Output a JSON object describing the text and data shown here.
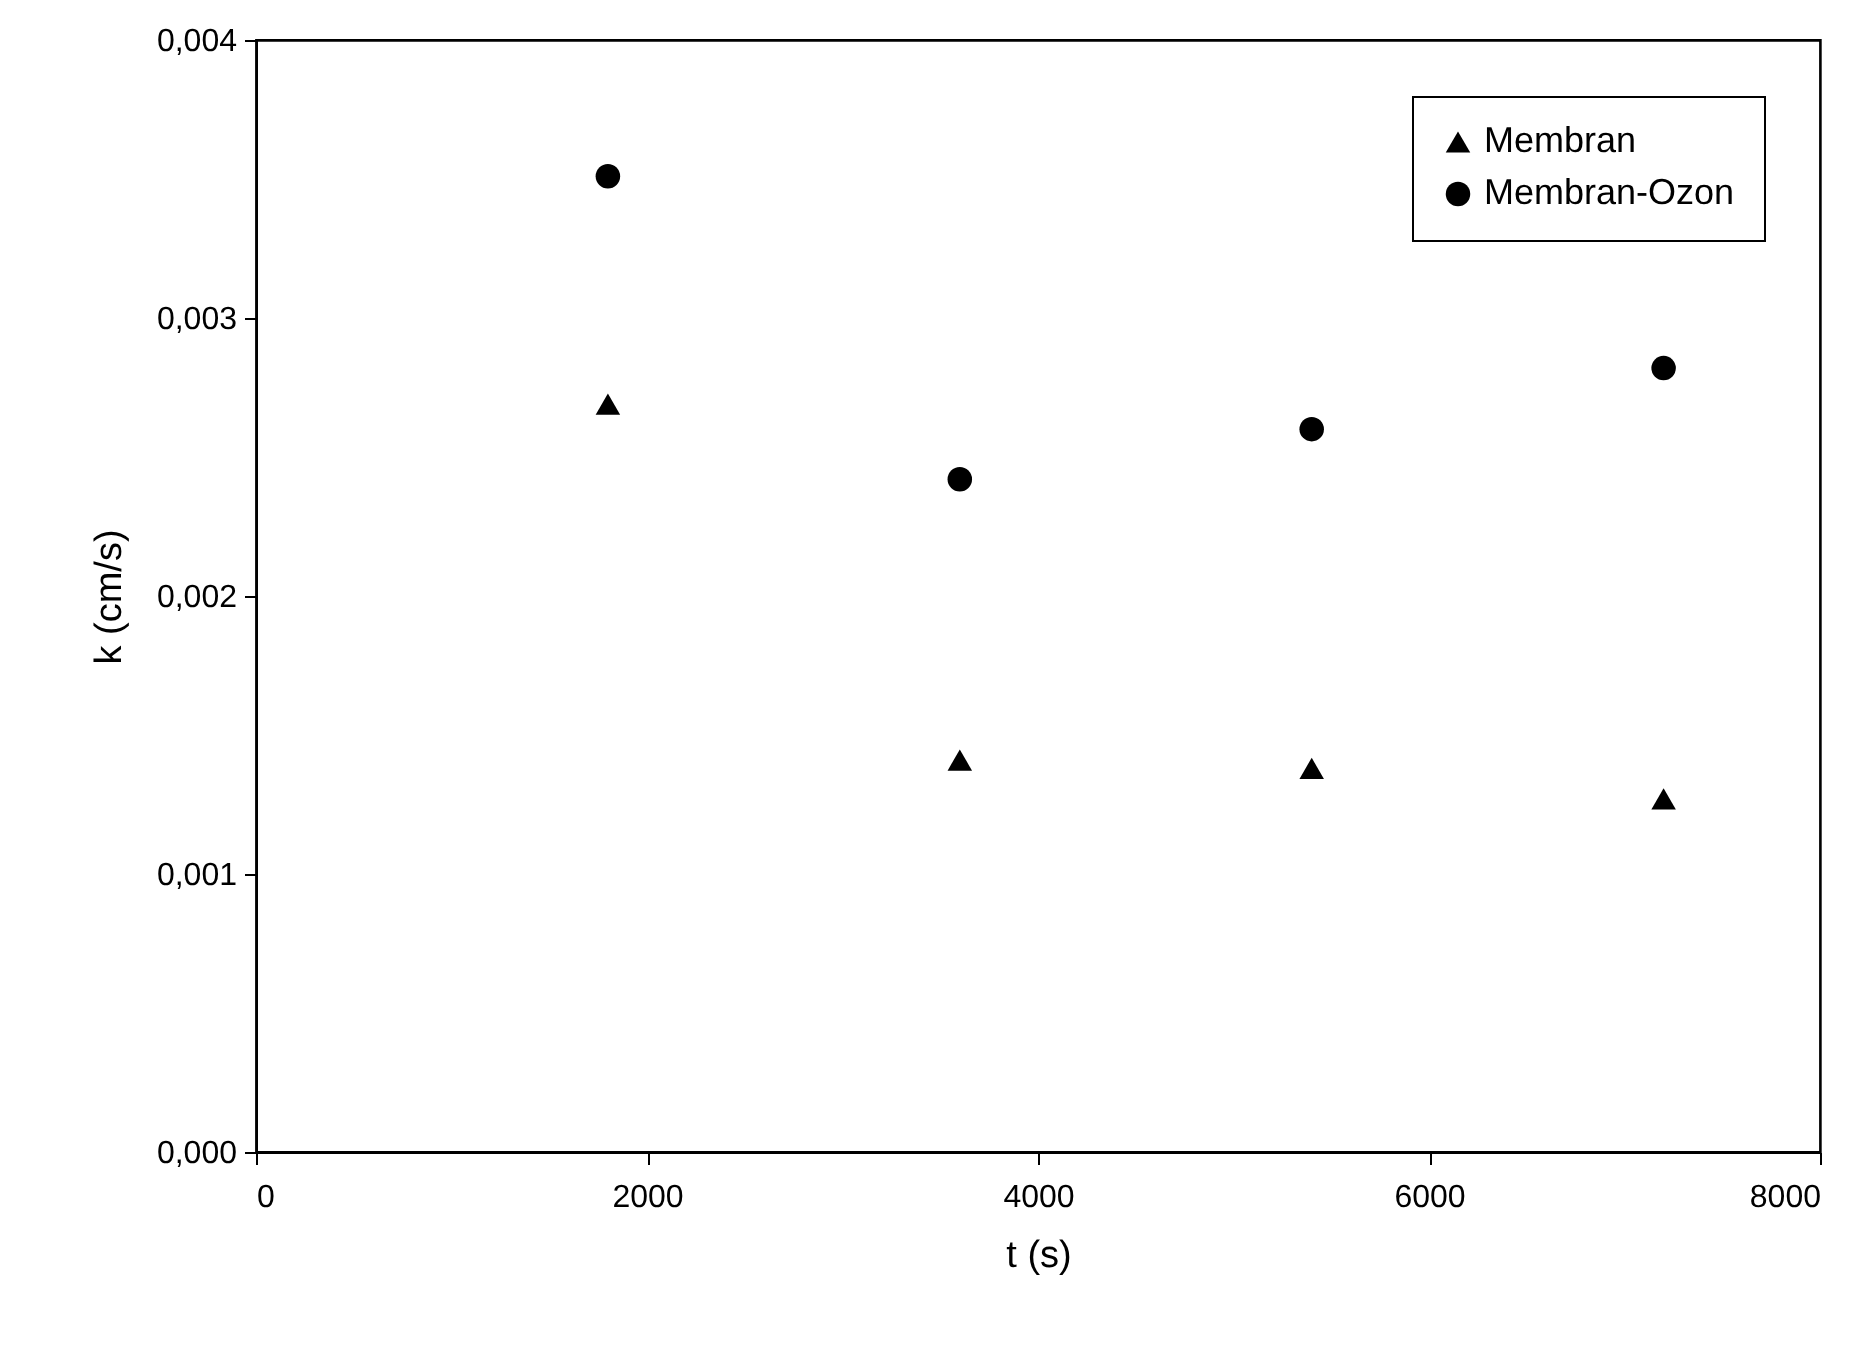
{
  "chart_data": {
    "type": "scatter",
    "xlabel": "t (s)",
    "ylabel": "k (cm/s)",
    "x": [
      1800,
      3600,
      5400,
      7200
    ],
    "series": [
      {
        "name": "Membran",
        "color": "#000000",
        "marker": "triangle",
        "values": [
          0.00269,
          0.00141,
          0.00138,
          0.00127
        ]
      },
      {
        "name": "Membran-Ozon",
        "color": "#000000",
        "marker": "circle",
        "values": [
          0.00351,
          0.00242,
          0.0026,
          0.00282
        ]
      }
    ],
    "xlim": [
      0,
      8000
    ],
    "xticks": [
      0,
      2000,
      4000,
      6000,
      8000
    ],
    "ylim": [
      0,
      0.004
    ],
    "yticks": [
      {
        "value": 0,
        "label": "0,000"
      },
      {
        "value": 0.001,
        "label": "0,001"
      },
      {
        "value": 0.002,
        "label": "0,002"
      },
      {
        "value": 0.003,
        "label": "0,003"
      },
      {
        "value": 0.004,
        "label": "0,004"
      }
    ],
    "legend": "top right",
    "grid": false
  }
}
